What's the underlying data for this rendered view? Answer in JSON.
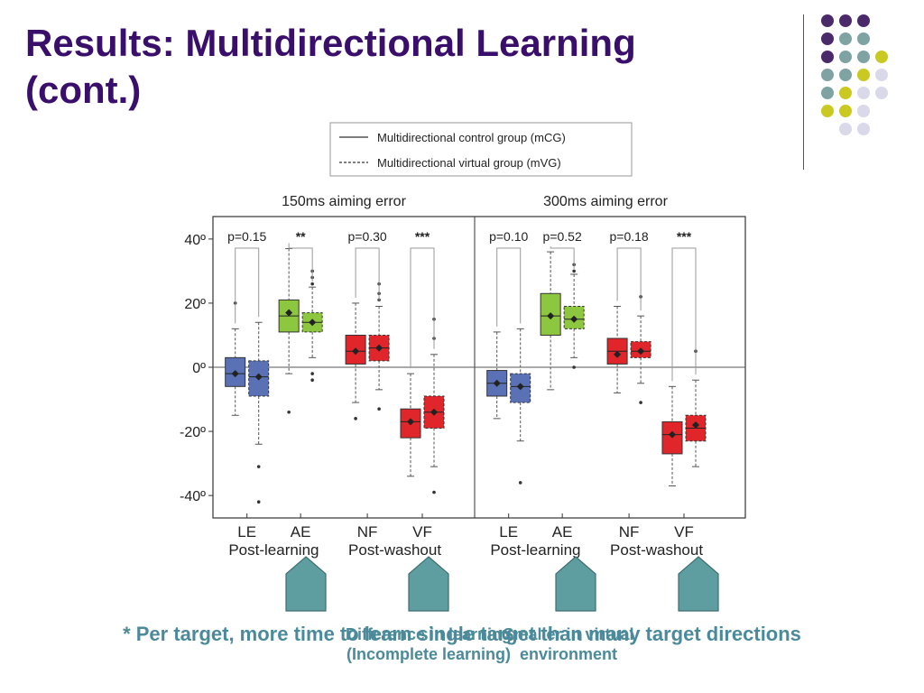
{
  "slide": {
    "title_line1": "Results: Multidirectional Learning",
    "title_line2": "(cont.)",
    "footnote": "* Per target, more time to learn single target than many target directions",
    "callout_left_1": "Difference in learning",
    "callout_left_2": "(Incomplete learning)",
    "callout_right_1": "Smaller in virtual",
    "callout_right_2": "environment"
  },
  "decor": {
    "purple": "#4b2a6b",
    "teal": "#7fa3a3",
    "yellow": "#c9c922",
    "lavender": "#d9d9ea",
    "arrow_color": "#5f9ea0",
    "title_color": "#3a0f6b"
  },
  "chart_data": {
    "type": "box",
    "legend": {
      "placement": "top",
      "entries": [
        {
          "label": "Multidirectional control group (mCG)",
          "style": "solid"
        },
        {
          "label": "Multidirectional virtual group (mVG)",
          "style": "dashed"
        }
      ]
    },
    "ylim": [
      -47,
      47
    ],
    "yticks": [
      {
        "value": 40,
        "label": "40º"
      },
      {
        "value": 20,
        "label": "20º"
      },
      {
        "value": 0,
        "label": "0º"
      },
      {
        "value": -20,
        "label": "-20º"
      },
      {
        "value": -40,
        "label": "-40º"
      }
    ],
    "panels": [
      {
        "title": "150ms aiming error",
        "categories": [
          "LE",
          "AE",
          "NF",
          "VF"
        ],
        "groups": [
          "Post-learning",
          "Post-washout"
        ],
        "pvalues": [
          "p=0.15",
          "**",
          "p=0.30",
          "***"
        ],
        "boxes": [
          {
            "category": "LE",
            "group": "mCG",
            "color": "#5a72b5",
            "q1": -6,
            "median": -2,
            "q3": 3,
            "whisker_low": -15,
            "whisker_high": 12,
            "mean": -2,
            "outliers": [
              20
            ]
          },
          {
            "category": "LE",
            "group": "mVG",
            "color": "#5a72b5",
            "q1": -9,
            "median": -3,
            "q3": 2,
            "whisker_low": -24,
            "whisker_high": 14,
            "mean": -3,
            "outliers": [
              -31,
              -42
            ]
          },
          {
            "category": "AE",
            "group": "mCG",
            "color": "#8dc63f",
            "q1": 11,
            "median": 16,
            "q3": 21,
            "whisker_low": -2,
            "whisker_high": 37,
            "mean": 17,
            "outliers": [
              -14
            ]
          },
          {
            "category": "AE",
            "group": "mVG",
            "color": "#8dc63f",
            "q1": 11,
            "median": 14,
            "q3": 17,
            "whisker_low": 3,
            "whisker_high": 25,
            "mean": 14,
            "outliers": [
              30,
              28,
              26,
              -2,
              -4
            ]
          },
          {
            "category": "NF",
            "group": "mCG",
            "color": "#e0262b",
            "q1": 1,
            "median": 5,
            "q3": 10,
            "whisker_low": -11,
            "whisker_high": 20,
            "mean": 5,
            "outliers": [
              -16
            ]
          },
          {
            "category": "NF",
            "group": "mVG",
            "color": "#e0262b",
            "q1": 2,
            "median": 6,
            "q3": 10,
            "whisker_low": -7,
            "whisker_high": 19,
            "mean": 6,
            "outliers": [
              26,
              23,
              21,
              -13
            ]
          },
          {
            "category": "VF",
            "group": "mCG",
            "color": "#e0262b",
            "q1": -22,
            "median": -17,
            "q3": -13,
            "whisker_low": -34,
            "whisker_high": -2,
            "mean": -17,
            "outliers": []
          },
          {
            "category": "VF",
            "group": "mVG",
            "color": "#e0262b",
            "q1": -19,
            "median": -14,
            "q3": -9,
            "whisker_low": -31,
            "whisker_high": 4,
            "mean": -14,
            "outliers": [
              15,
              9,
              -39
            ]
          }
        ]
      },
      {
        "title": "300ms aiming error",
        "categories": [
          "LE",
          "AE",
          "NF",
          "VF"
        ],
        "groups": [
          "Post-learning",
          "Post-washout"
        ],
        "pvalues": [
          "p=0.10",
          "p=0.52",
          "p=0.18",
          "***"
        ],
        "boxes": [
          {
            "category": "LE",
            "group": "mCG",
            "color": "#5a72b5",
            "q1": -9,
            "median": -5,
            "q3": -1,
            "whisker_low": -16,
            "whisker_high": 11,
            "mean": -5,
            "outliers": []
          },
          {
            "category": "LE",
            "group": "mVG",
            "color": "#5a72b5",
            "q1": -11,
            "median": -6,
            "q3": -2,
            "whisker_low": -23,
            "whisker_high": 12,
            "mean": -6,
            "outliers": [
              -36
            ]
          },
          {
            "category": "AE",
            "group": "mCG",
            "color": "#8dc63f",
            "q1": 10,
            "median": 16,
            "q3": 23,
            "whisker_low": -7,
            "whisker_high": 36,
            "mean": 16,
            "outliers": []
          },
          {
            "category": "AE",
            "group": "mVG",
            "color": "#8dc63f",
            "q1": 12,
            "median": 15,
            "q3": 19,
            "whisker_low": 3,
            "whisker_high": 29,
            "mean": 15,
            "outliers": [
              32,
              30,
              0
            ]
          },
          {
            "category": "NF",
            "group": "mCG",
            "color": "#e0262b",
            "q1": 1,
            "median": 5,
            "q3": 9,
            "whisker_low": -8,
            "whisker_high": 19,
            "mean": 4,
            "outliers": []
          },
          {
            "category": "NF",
            "group": "mVG",
            "color": "#e0262b",
            "q1": 3,
            "median": 5,
            "q3": 8,
            "whisker_low": -5,
            "whisker_high": 16,
            "mean": 5,
            "outliers": [
              22,
              -11
            ]
          },
          {
            "category": "VF",
            "group": "mCG",
            "color": "#e0262b",
            "q1": -27,
            "median": -21,
            "q3": -17,
            "whisker_low": -37,
            "whisker_high": -6,
            "mean": -21,
            "outliers": []
          },
          {
            "category": "VF",
            "group": "mVG",
            "color": "#e0262b",
            "q1": -23,
            "median": -19,
            "q3": -15,
            "whisker_low": -31,
            "whisker_high": -4,
            "mean": -18,
            "outliers": [
              5
            ]
          }
        ]
      }
    ]
  }
}
